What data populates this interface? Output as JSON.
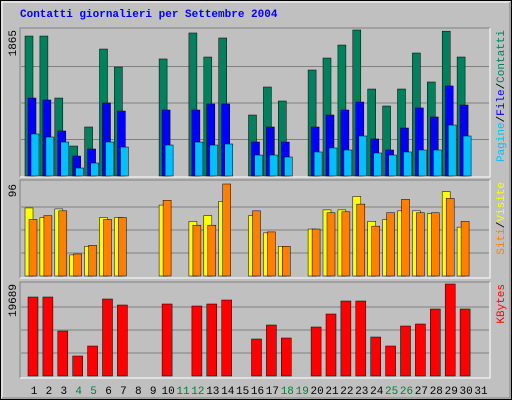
{
  "title": "Contatti giornalieri per Settembre 2004",
  "legend_separator": "/",
  "grid_divisions": 4,
  "chart_data": [
    {
      "type": "bar",
      "ylim": [
        0,
        1865
      ],
      "yticks": [
        1865
      ],
      "series": [
        {
          "name": "Contatti",
          "color": "#00805C",
          "values": [
            1788,
            1788,
            996,
            383,
            626,
            1622,
            1392,
            0,
            0,
            1495,
            0,
            1827,
            1520,
            1763,
            0,
            779,
            1137,
            958,
            0,
            1354,
            1507,
            1673,
            1865,
            1111,
            894,
            1111,
            1571,
            1201,
            1850,
            1520,
            0
          ]
        },
        {
          "name": "File",
          "color": "#0000FF",
          "values": [
            996,
            971,
            575,
            255,
            345,
            933,
            830,
            0,
            0,
            843,
            0,
            843,
            920,
            920,
            0,
            434,
            626,
            434,
            0,
            626,
            779,
            843,
            945,
            473,
            332,
            613,
            869,
            754,
            1150,
            907,
            0
          ]
        },
        {
          "name": "Pagine",
          "color": "#00C0FF",
          "values": [
            537,
            498,
            434,
            102,
            166,
            434,
            370,
            0,
            0,
            396,
            0,
            434,
            396,
            409,
            0,
            268,
            268,
            243,
            0,
            307,
            358,
            332,
            511,
            294,
            268,
            307,
            332,
            332,
            651,
            511,
            0
          ]
        }
      ]
    },
    {
      "type": "bar",
      "ylim": [
        0,
        96
      ],
      "yticks": [
        96
      ],
      "series": [
        {
          "name": "Visite",
          "color": "#FFFF00",
          "values": [
            71,
            61,
            70,
            22,
            31,
            61,
            61,
            0,
            0,
            74,
            0,
            57,
            63,
            78,
            0,
            63,
            45,
            31,
            0,
            49,
            69,
            69,
            83,
            57,
            59,
            68,
            68,
            65,
            88,
            51,
            0
          ]
        },
        {
          "name": "Siti",
          "color": "#FF8000",
          "values": [
            59,
            63,
            68,
            23,
            32,
            59,
            61,
            0,
            0,
            79,
            0,
            53,
            53,
            96,
            0,
            68,
            46,
            31,
            0,
            49,
            66,
            67,
            75,
            52,
            66,
            80,
            66,
            66,
            81,
            57,
            0
          ]
        }
      ]
    },
    {
      "type": "bar",
      "ylim": [
        0,
        19689
      ],
      "yticks": [
        19689
      ],
      "categories": [
        "1",
        "2",
        "3",
        "4",
        "5",
        "6",
        "7",
        "8",
        "9",
        "10",
        "11",
        "12",
        "13",
        "14",
        "15",
        "16",
        "17",
        "18",
        "19",
        "20",
        "21",
        "22",
        "23",
        "24",
        "25",
        "26",
        "27",
        "28",
        "29",
        "30",
        "31"
      ],
      "label_colors": [
        "#000000",
        "#000000",
        "#000000",
        "#008040",
        "#008040",
        "#000000",
        "#000000",
        "#000000",
        "#000000",
        "#000000",
        "#008040",
        "#008040",
        "#000000",
        "#000000",
        "#000000",
        "#000000",
        "#000000",
        "#008040",
        "#008040",
        "#000000",
        "#000000",
        "#000000",
        "#000000",
        "#000000",
        "#008040",
        "#008040",
        "#000000",
        "#000000",
        "#000000",
        "#000000",
        "#000000"
      ],
      "series": [
        {
          "name": "KBytes",
          "color": "#FF0000",
          "values": [
            16906,
            16906,
            9630,
            4280,
            6420,
            16478,
            15194,
            0,
            0,
            15408,
            0,
            14980,
            15408,
            16264,
            0,
            7918,
            10914,
            8132,
            0,
            10486,
            13268,
            16050,
            16050,
            8346,
            6420,
            10700,
            11128,
            14338,
            19689,
            14338,
            0
          ]
        }
      ]
    }
  ]
}
